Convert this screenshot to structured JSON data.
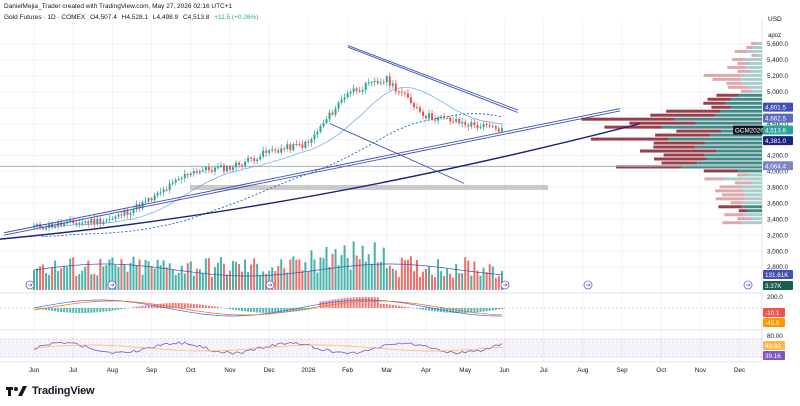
{
  "header": {
    "attribution": "DanielMejia_Trader created with TradingView.com, May 27, 2026 02:16 UTC+1",
    "symbol": "Gold Futures · 1D · COMEX",
    "open": "O4,507.4",
    "high": "H4,528.1",
    "low": "L4,498.9",
    "close": "C4,513.8",
    "change": "+11.5 (+0.26%)"
  },
  "currency": "USD",
  "scale_note": "apoz",
  "brand": "TradingView",
  "colors": {
    "up": "#26a69a",
    "down": "#ef5350",
    "wedge": "#3f51b5",
    "trend": "#1a237e",
    "volume_profile_up": "#2e7d78",
    "volume_profile_down": "#8e2a37"
  },
  "chart_data": [
    {
      "type": "candlestick",
      "title": "Gold Futures · 1D · COMEX",
      "x_ticks": [
        "Jun",
        "Jul",
        "Aug",
        "Sep",
        "Oct",
        "Nov",
        "Dec",
        "2026",
        "Feb",
        "Mar",
        "Apr",
        "May",
        "Jun",
        "Jul",
        "Aug",
        "Sep",
        "Oct",
        "Nov",
        "Dec"
      ],
      "y_ticks": [
        5600,
        5400,
        5200,
        5000,
        4800,
        4600,
        4400,
        4200,
        4000,
        3800,
        3600,
        3400,
        3200,
        3000,
        2800
      ],
      "y_tick_labels": [
        "5,600.0",
        "5,400.0",
        "5,200.0",
        "5,000.0",
        "4,800.0",
        "4,600.0",
        "4,400.0",
        "4,200.0",
        "4,000.0",
        "3,800.0",
        "3,600.0",
        "3,400.0",
        "3,200.0",
        "3,000.0",
        "2,800.0"
      ],
      "ylim": [
        2700,
        5700
      ],
      "close_path": [
        [
          "Jun",
          3300
        ],
        [
          "Jul",
          3350
        ],
        [
          "Aug",
          3400
        ],
        [
          "Sep",
          3650
        ],
        [
          "Oct",
          4000
        ],
        [
          "Nov",
          4050
        ],
        [
          "Dec",
          4250
        ],
        [
          "2026",
          4350
        ],
        [
          "Feb",
          5000
        ],
        [
          "Mar",
          5150
        ],
        [
          "Apr",
          4700
        ],
        [
          "May",
          4600
        ],
        [
          "Jun",
          4513.8
        ]
      ],
      "price_tags": [
        {
          "label": "4,801.5",
          "value": 4801.5,
          "color": "#3f51b5"
        },
        {
          "label": "4,662.5",
          "value": 4662.5,
          "color": "#5c6bc0"
        },
        {
          "label": "GCM2026",
          "value": 4513.8,
          "color": "#131722"
        },
        {
          "label": "4,513.8",
          "value": 4513.8,
          "color": "#26a69a"
        },
        {
          "label": "4,381.0",
          "value": 4381.0,
          "color": "#1a237e"
        },
        {
          "label": "4,064.4",
          "value": 4064.4,
          "color": "#7986cb"
        }
      ]
    },
    {
      "type": "bar",
      "title": "Volume",
      "tags": [
        {
          "label": "131.61K",
          "color": "#3f51b5"
        },
        {
          "label": "3.37K",
          "color": "#1b5e4f"
        }
      ]
    },
    {
      "type": "line",
      "title": "MACD",
      "y_ticks": [
        "200.0"
      ],
      "tags": [
        {
          "label": "-10.1",
          "color": "#ef5350"
        },
        {
          "label": "-45.9",
          "color": "#ff9800"
        }
      ]
    },
    {
      "type": "line",
      "title": "RSI",
      "y_ticks": [
        "80.00"
      ],
      "tags": [
        {
          "label": "43.92",
          "color": "#ffb74d"
        },
        {
          "label": "39.16",
          "color": "#7e57c2"
        }
      ]
    }
  ]
}
